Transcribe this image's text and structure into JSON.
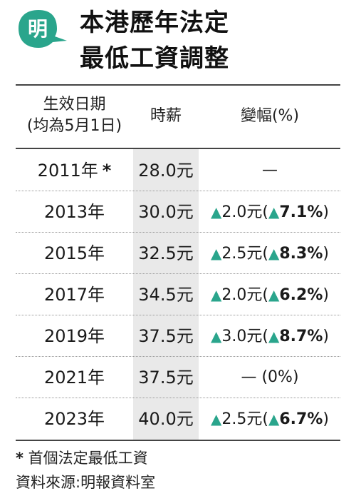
{
  "logo": {
    "char": "明",
    "color": "#2aa58c",
    "icon": "ming-pao-logo-icon"
  },
  "title": {
    "line1": "本港歷年法定",
    "line2": "最低工資調整"
  },
  "headers": {
    "date_line1": "生效日期",
    "date_line2": "(均為5月1日)",
    "wage": "時薪",
    "change": "變幅(%)"
  },
  "chart_data": {
    "type": "table",
    "columns": [
      "生效日期(均為5月1日)",
      "時薪",
      "變幅(%)"
    ],
    "rows": [
      {
        "year": "2011年",
        "marker": "*",
        "wage": "28.0元",
        "change": "—",
        "pct": "",
        "up": false
      },
      {
        "year": "2013年",
        "marker": "",
        "wage": "30.0元",
        "change": "2.0元(",
        "pct": "7.1%",
        "up": true
      },
      {
        "year": "2015年",
        "marker": "",
        "wage": "32.5元",
        "change": "2.5元(",
        "pct": "8.3%",
        "up": true
      },
      {
        "year": "2017年",
        "marker": "",
        "wage": "34.5元",
        "change": "2.0元(",
        "pct": "6.2%",
        "up": true
      },
      {
        "year": "2019年",
        "marker": "",
        "wage": "37.5元",
        "change": "3.0元(",
        "pct": "8.7%",
        "up": true
      },
      {
        "year": "2021年",
        "marker": "",
        "wage": "37.5元",
        "change": "— (0%)",
        "pct": "",
        "up": false
      },
      {
        "year": "2023年",
        "marker": "",
        "wage": "40.0元",
        "change": "2.5元(",
        "pct": "6.7%",
        "up": true
      }
    ]
  },
  "footnote": {
    "marker": "*",
    "text": "首個法定最低工資",
    "source": "資料來源:明報資料室"
  },
  "colors": {
    "accent": "#2aa58c",
    "shade": "#e9e9e9"
  }
}
